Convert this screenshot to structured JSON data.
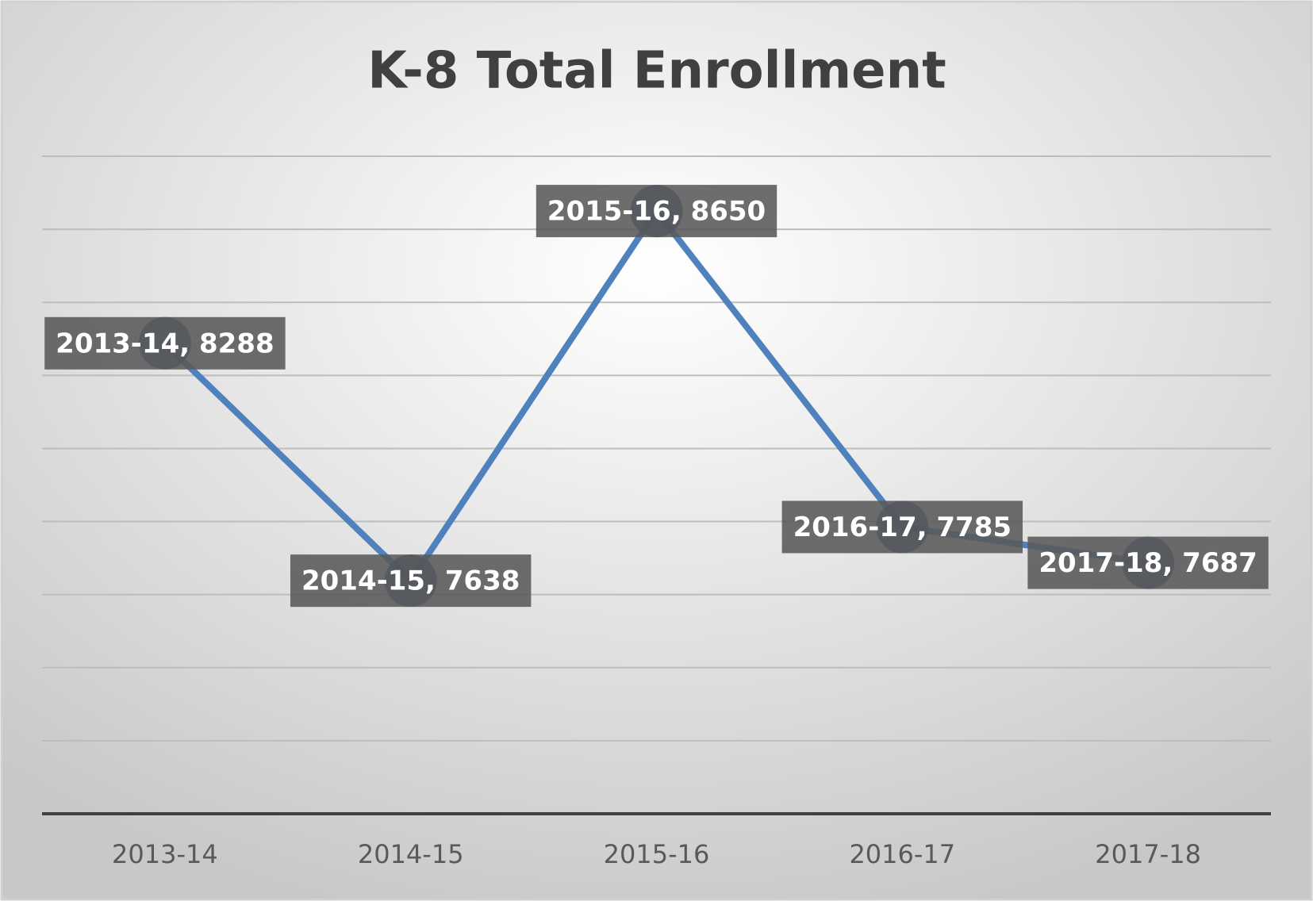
{
  "chart_data": {
    "type": "line",
    "title": "K-8 Total Enrollment",
    "categories": [
      "2013-14",
      "2014-15",
      "2015-16",
      "2016-17",
      "2017-18"
    ],
    "series": [
      {
        "name": "Total Enrollment",
        "color": "#4f81bd",
        "marker_color": "#2e4a7d",
        "values": [
          8288,
          7638,
          8650,
          7785,
          7687
        ],
        "value_labels": [
          "2013-14, 8288",
          "2014-15, 7638",
          "2015-16, 8650",
          "2016-17, 7785",
          "2017-18, 7687"
        ]
      }
    ],
    "ylim": [
      7000,
      8800
    ],
    "yticks": [
      7000,
      7200,
      7400,
      7600,
      7800,
      8000,
      8200,
      8400,
      8600,
      8800
    ],
    "grid": true
  }
}
